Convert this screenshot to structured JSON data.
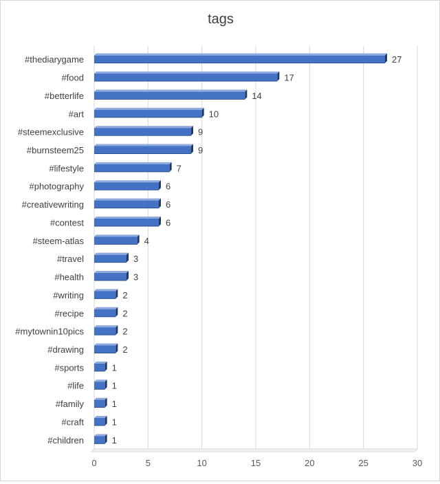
{
  "chart_data": {
    "type": "bar",
    "orientation": "horizontal",
    "style": "3d-bar",
    "title": "tags",
    "xlabel": "",
    "ylabel": "",
    "xlim": [
      0,
      30
    ],
    "x_ticks": [
      0,
      5,
      10,
      15,
      20,
      25,
      30
    ],
    "grid": "vertical",
    "legend": "none",
    "bar_color": "#4472c4",
    "categories": [
      "#thediarygame",
      "#food",
      "#betterlife",
      "#art",
      "#steemexclusive",
      "#burnsteem25",
      "#lifestyle",
      "#photography",
      "#creativewriting",
      "#contest",
      "#steem-atlas",
      "#travel",
      "#health",
      "#writing",
      "#recipe",
      "#mytownin10pics",
      "#drawing",
      "#sports",
      "#life",
      "#family",
      "#craft",
      "#children"
    ],
    "values": [
      27,
      17,
      14,
      10,
      9,
      9,
      7,
      6,
      6,
      6,
      4,
      3,
      3,
      2,
      2,
      2,
      2,
      1,
      1,
      1,
      1,
      1
    ]
  }
}
